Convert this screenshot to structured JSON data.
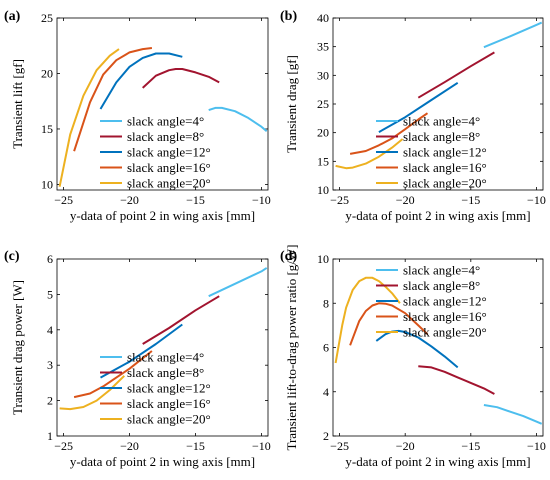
{
  "colors": {
    "slack_4": "#4DBEEE",
    "slack_8": "#A2142F",
    "slack_12": "#0072BD",
    "slack_16": "#D95319",
    "slack_20": "#EDB120"
  },
  "chart_data": [
    {
      "panel_label": "(a)",
      "type": "line",
      "xlabel": "y-data of point 2 in wing axis [mm]",
      "ylabel": "Transient lift [gf]",
      "xlim": [
        -25.5,
        -9.5
      ],
      "ylim": [
        9.5,
        25
      ],
      "xticks": [
        -25,
        -20,
        -15,
        -10
      ],
      "xtick_labels": [
        "−25",
        "−20",
        "−15",
        "−10"
      ],
      "yticks": [
        10,
        15,
        20,
        25
      ],
      "ytick_labels": [
        "10",
        "15",
        "20",
        "25"
      ],
      "legend_position": "lower-right",
      "series": [
        {
          "name": "slack angle=4°",
          "color_key": "slack_4",
          "x": [
            -14,
            -13.5,
            -13,
            -12,
            -11,
            -10,
            -9.6
          ],
          "y": [
            16.7,
            16.9,
            16.9,
            16.6,
            16.0,
            15.2,
            14.8
          ]
        },
        {
          "name": "slack angle=8°",
          "color_key": "slack_8",
          "x": [
            -19,
            -18,
            -17,
            -16.5,
            -16,
            -15,
            -14,
            -13.2
          ],
          "y": [
            18.7,
            19.8,
            20.3,
            20.4,
            20.4,
            20.1,
            19.7,
            19.2
          ]
        },
        {
          "name": "slack angle=12°",
          "color_key": "slack_12",
          "x": [
            -22.2,
            -21,
            -20,
            -19,
            -18,
            -17,
            -16
          ],
          "y": [
            16.8,
            19.2,
            20.6,
            21.4,
            21.8,
            21.8,
            21.5
          ]
        },
        {
          "name": "slack angle=16°",
          "color_key": "slack_16",
          "x": [
            -24.2,
            -23,
            -22,
            -21,
            -20,
            -19,
            -18.3
          ],
          "y": [
            13.0,
            17.4,
            19.9,
            21.2,
            21.9,
            22.2,
            22.3
          ]
        },
        {
          "name": "slack angle=20°",
          "color_key": "slack_20",
          "x": [
            -25.3,
            -24.5,
            -23.5,
            -22.5,
            -21.5,
            -20.8
          ],
          "y": [
            9.8,
            14.5,
            18.0,
            20.3,
            21.6,
            22.2
          ]
        }
      ]
    },
    {
      "panel_label": "(b)",
      "type": "line",
      "xlabel": "y-data of point 2 in wing axis [mm]",
      "ylabel": "Transient drag [gf]",
      "xlim": [
        -25.5,
        -9.5
      ],
      "ylim": [
        10,
        40
      ],
      "xticks": [
        -25,
        -20,
        -15,
        -10
      ],
      "xtick_labels": [
        "−25",
        "−20",
        "−15",
        "−10"
      ],
      "yticks": [
        10,
        15,
        20,
        25,
        30,
        35,
        40
      ],
      "ytick_labels": [
        "10",
        "15",
        "20",
        "25",
        "30",
        "35",
        "40"
      ],
      "legend_position": "lower-right",
      "series": [
        {
          "name": "slack angle=4°",
          "color_key": "slack_4",
          "x": [
            -14,
            -12,
            -10,
            -9.6
          ],
          "y": [
            34.9,
            36.8,
            38.8,
            39.2
          ]
        },
        {
          "name": "slack angle=8°",
          "color_key": "slack_8",
          "x": [
            -19,
            -17,
            -15,
            -13.2
          ],
          "y": [
            26.1,
            28.8,
            31.6,
            34.0
          ]
        },
        {
          "name": "slack angle=12°",
          "color_key": "slack_12",
          "x": [
            -22,
            -20,
            -18,
            -16
          ],
          "y": [
            20.1,
            22.7,
            25.7,
            28.7
          ]
        },
        {
          "name": "slack angle=16°",
          "color_key": "slack_16",
          "x": [
            -24.2,
            -23,
            -22,
            -21,
            -20,
            -19,
            -18.3
          ],
          "y": [
            16.3,
            16.8,
            17.8,
            19.0,
            20.6,
            22.3,
            23.4
          ]
        },
        {
          "name": "slack angle=20°",
          "color_key": "slack_20",
          "x": [
            -25.3,
            -24.5,
            -24,
            -23,
            -22,
            -21,
            -20.2
          ],
          "y": [
            14.2,
            13.8,
            13.9,
            14.6,
            15.8,
            17.4,
            18.9
          ]
        }
      ]
    },
    {
      "panel_label": "(c)",
      "type": "line",
      "xlabel": "y-data of point 2 in wing axis [mm]",
      "ylabel": "Transient drag power [W]",
      "xlim": [
        -25.5,
        -9.5
      ],
      "ylim": [
        1,
        6
      ],
      "xticks": [
        -25,
        -20,
        -15,
        -10
      ],
      "xtick_labels": [
        "−25",
        "−20",
        "−15",
        "−10"
      ],
      "yticks": [
        1,
        2,
        3,
        4,
        5,
        6
      ],
      "ytick_labels": [
        "1",
        "2",
        "3",
        "4",
        "5",
        "6"
      ],
      "legend_position": "lower-right",
      "series": [
        {
          "name": "slack angle=4°",
          "color_key": "slack_4",
          "x": [
            -14,
            -12,
            -10,
            -9.6
          ],
          "y": [
            4.95,
            5.3,
            5.65,
            5.75
          ]
        },
        {
          "name": "slack angle=8°",
          "color_key": "slack_8",
          "x": [
            -19,
            -17,
            -15,
            -13.2
          ],
          "y": [
            3.6,
            4.05,
            4.55,
            4.95
          ]
        },
        {
          "name": "slack angle=12°",
          "color_key": "slack_12",
          "x": [
            -22.2,
            -20,
            -18,
            -16
          ],
          "y": [
            2.65,
            3.1,
            3.6,
            4.15
          ]
        },
        {
          "name": "slack angle=16°",
          "color_key": "slack_16",
          "x": [
            -24.2,
            -23,
            -22,
            -21,
            -20,
            -18.3
          ],
          "y": [
            2.1,
            2.2,
            2.4,
            2.65,
            2.9,
            3.4
          ]
        },
        {
          "name": "slack angle=20°",
          "color_key": "slack_20",
          "x": [
            -25.3,
            -24.5,
            -23.5,
            -22.5,
            -21.5,
            -20.4
          ],
          "y": [
            1.78,
            1.76,
            1.82,
            2.0,
            2.3,
            2.7
          ]
        }
      ]
    },
    {
      "panel_label": "(d)",
      "type": "line",
      "xlabel": "y-data of point 2 in wing axis [mm]",
      "ylabel": "Transient lift-to-drag power ratio [g/W]",
      "xlim": [
        -25.5,
        -9.5
      ],
      "ylim": [
        2,
        10
      ],
      "xticks": [
        -25,
        -20,
        -15,
        -10
      ],
      "xtick_labels": [
        "−25",
        "−20",
        "−15",
        "−10"
      ],
      "yticks": [
        2,
        4,
        6,
        8,
        10
      ],
      "ytick_labels": [
        "2",
        "4",
        "6",
        "8",
        "10"
      ],
      "legend_position": "upper-right",
      "series": [
        {
          "name": "slack angle=4°",
          "color_key": "slack_4",
          "x": [
            -14,
            -13,
            -12,
            -11,
            -10,
            -9.6
          ],
          "y": [
            3.4,
            3.3,
            3.1,
            2.9,
            2.65,
            2.55
          ]
        },
        {
          "name": "slack angle=8°",
          "color_key": "slack_8",
          "x": [
            -19,
            -18,
            -17,
            -16,
            -15,
            -14,
            -13.2
          ],
          "y": [
            5.15,
            5.1,
            4.9,
            4.65,
            4.4,
            4.15,
            3.9
          ]
        },
        {
          "name": "slack angle=12°",
          "color_key": "slack_12",
          "x": [
            -22.2,
            -21.5,
            -21,
            -20.5,
            -20,
            -19,
            -18,
            -17,
            -16
          ],
          "y": [
            6.3,
            6.6,
            6.72,
            6.75,
            6.7,
            6.45,
            6.05,
            5.6,
            5.1
          ]
        },
        {
          "name": "slack angle=16°",
          "color_key": "slack_16",
          "x": [
            -24.2,
            -23.5,
            -23,
            -22.5,
            -22,
            -21.5,
            -21,
            -20,
            -19,
            -18.3
          ],
          "y": [
            6.1,
            7.2,
            7.65,
            7.9,
            8.0,
            7.98,
            7.9,
            7.55,
            7.0,
            6.6
          ]
        },
        {
          "name": "slack angle=20°",
          "color_key": "slack_20",
          "x": [
            -25.3,
            -24.8,
            -24.5,
            -24,
            -23.5,
            -23,
            -22.5,
            -22,
            -21.5,
            -21,
            -20.4
          ],
          "y": [
            5.3,
            7.0,
            7.8,
            8.6,
            9.0,
            9.15,
            9.15,
            9.0,
            8.75,
            8.45,
            8.0
          ]
        }
      ]
    }
  ]
}
